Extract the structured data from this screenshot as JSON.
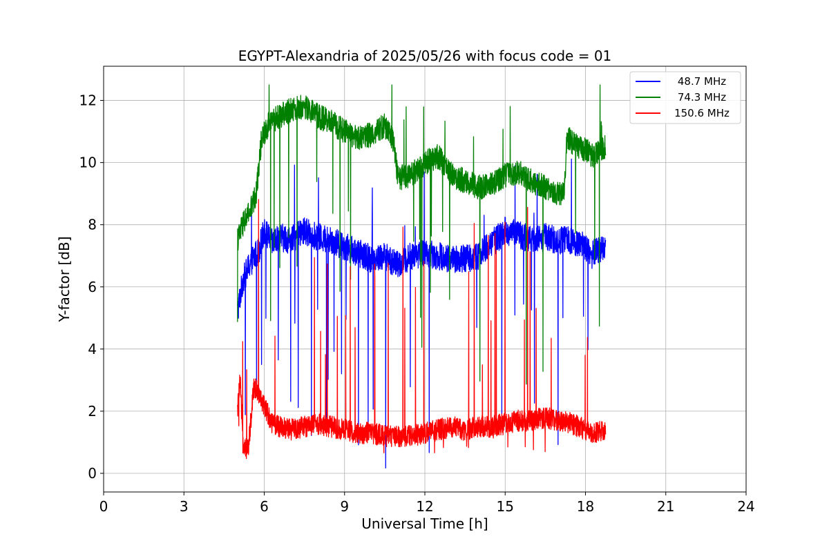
{
  "chart_data": {
    "type": "line",
    "title": "EGYPT-Alexandria of 2025/05/26 with focus code = 01",
    "xlabel": "Universal Time [h]",
    "ylabel": "Y-factor [dB]",
    "xlim": [
      0,
      24
    ],
    "ylim": [
      -0.6,
      13.1
    ],
    "xticks": [
      0,
      3,
      6,
      9,
      12,
      15,
      18,
      21,
      24
    ],
    "yticks": [
      0,
      2,
      4,
      6,
      8,
      10,
      12
    ],
    "grid": true,
    "legend_position": "top-right",
    "series": [
      {
        "name": "  48.7 MHz",
        "color": "#0000ff",
        "noise": 0.45,
        "x": [
          5.0,
          5.2,
          5.5,
          5.8,
          6.0,
          6.3,
          6.6,
          7.0,
          7.5,
          8.0,
          8.5,
          9.0,
          9.5,
          10.0,
          10.5,
          10.8,
          11.0,
          11.5,
          12.0,
          12.5,
          13.0,
          13.5,
          14.0,
          14.5,
          15.0,
          15.5,
          16.0,
          16.5,
          17.0,
          17.5,
          18.0,
          18.2,
          18.5,
          18.75
        ],
        "y": [
          5.2,
          6.2,
          6.8,
          7.2,
          7.8,
          7.4,
          7.6,
          7.5,
          7.8,
          7.6,
          7.5,
          7.3,
          7.1,
          6.9,
          7.0,
          6.8,
          6.7,
          7.0,
          7.1,
          7.0,
          6.9,
          6.9,
          7.0,
          7.4,
          7.8,
          7.7,
          7.5,
          7.6,
          7.5,
          7.5,
          7.3,
          7.0,
          7.2,
          7.3
        ]
      },
      {
        "name": "  74.3 MHz",
        "color": "#008000",
        "noise": 0.4,
        "x": [
          5.0,
          5.2,
          5.5,
          5.7,
          5.9,
          6.2,
          6.6,
          7.0,
          7.5,
          8.0,
          8.5,
          9.0,
          9.5,
          10.0,
          10.5,
          10.8,
          11.0,
          11.5,
          12.0,
          12.5,
          13.0,
          13.5,
          14.0,
          14.5,
          15.0,
          15.5,
          16.0,
          16.5,
          17.0,
          17.2,
          17.3,
          17.6,
          18.0,
          18.3,
          18.6,
          18.75
        ],
        "y": [
          7.5,
          8.0,
          8.5,
          9.0,
          10.8,
          11.3,
          11.5,
          11.7,
          11.8,
          11.5,
          11.3,
          11.0,
          10.8,
          10.9,
          11.2,
          10.8,
          9.5,
          9.6,
          10.0,
          10.2,
          9.6,
          9.4,
          9.2,
          9.3,
          9.6,
          9.7,
          9.4,
          9.2,
          9.0,
          9.0,
          10.8,
          10.6,
          10.4,
          10.2,
          10.4,
          10.5
        ]
      },
      {
        "name": " 150.6 MHz",
        "color": "#ff0000",
        "noise": 0.35,
        "x": [
          5.0,
          5.1,
          5.2,
          5.4,
          5.6,
          5.8,
          6.0,
          6.3,
          6.6,
          7.0,
          7.5,
          8.0,
          8.5,
          9.0,
          9.5,
          10.0,
          10.5,
          11.0,
          11.5,
          12.0,
          12.5,
          13.0,
          13.5,
          14.0,
          14.5,
          15.0,
          15.5,
          16.0,
          16.5,
          17.0,
          17.5,
          18.0,
          18.3,
          18.75
        ],
        "y": [
          2.0,
          3.0,
          1.0,
          0.7,
          2.8,
          2.6,
          2.2,
          1.6,
          1.5,
          1.4,
          1.5,
          1.6,
          1.5,
          1.4,
          1.3,
          1.3,
          1.2,
          1.2,
          1.2,
          1.3,
          1.4,
          1.5,
          1.4,
          1.5,
          1.5,
          1.6,
          1.7,
          1.7,
          1.8,
          1.7,
          1.6,
          1.4,
          1.3,
          1.4
        ]
      }
    ],
    "annotations": []
  }
}
